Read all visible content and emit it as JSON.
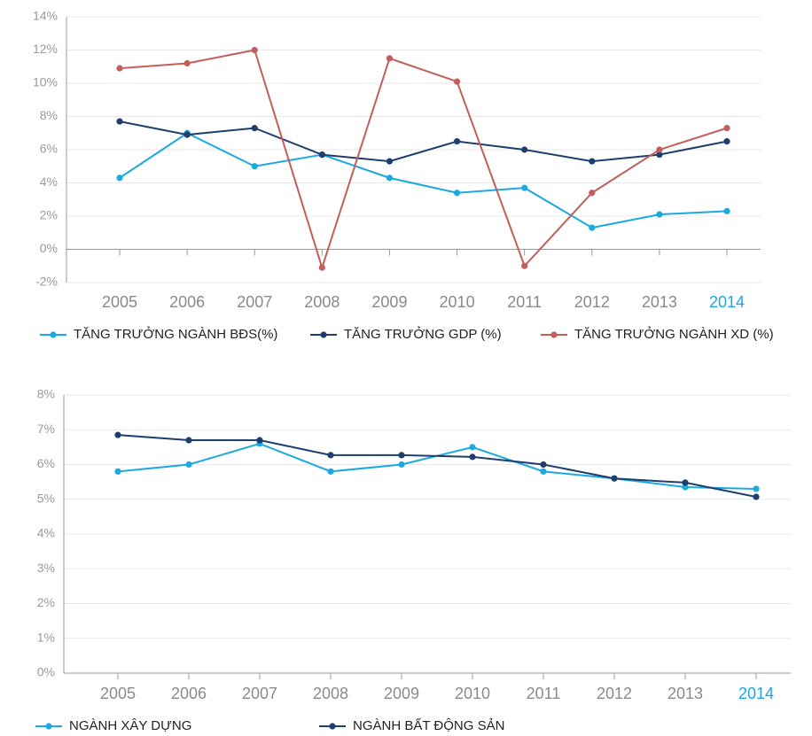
{
  "chart_data": [
    {
      "type": "line",
      "categories": [
        "2005",
        "2006",
        "2007",
        "2008",
        "2009",
        "2010",
        "2011",
        "2012",
        "2013",
        "2014"
      ],
      "ylim": [
        -2,
        14
      ],
      "yticks": [
        {
          "value": -2,
          "label": "-2%"
        },
        {
          "value": 0,
          "label": "0%"
        },
        {
          "value": 2,
          "label": "2%"
        },
        {
          "value": 4,
          "label": "4%"
        },
        {
          "value": 6,
          "label": "6%"
        },
        {
          "value": 8,
          "label": "8%"
        },
        {
          "value": 10,
          "label": "10%"
        },
        {
          "value": 12,
          "label": "12%"
        },
        {
          "value": 14,
          "label": "14%"
        }
      ],
      "grid": true,
      "legend": "bottom-left",
      "series": [
        {
          "name": "TĂNG TRƯỞNG NGÀNH BĐS(%)",
          "color": "#1aa9e0",
          "values": [
            4.3,
            7.0,
            5.0,
            5.7,
            4.3,
            3.4,
            3.7,
            1.3,
            2.1,
            2.3
          ]
        },
        {
          "name": "TĂNG TRƯỞNG GDP (%)",
          "color": "#1d3e6e",
          "values": [
            7.7,
            6.9,
            7.3,
            5.7,
            5.3,
            6.5,
            6.0,
            5.3,
            5.7,
            6.5
          ]
        },
        {
          "name": "TĂNG TRƯỞNG NGÀNH XD (%)",
          "color": "#c45e5b",
          "values": [
            10.9,
            11.2,
            12.0,
            -1.1,
            11.5,
            10.1,
            -1.0,
            3.4,
            6.0,
            7.3
          ]
        }
      ]
    },
    {
      "type": "line",
      "categories": [
        "2005",
        "2006",
        "2007",
        "2008",
        "2009",
        "2010",
        "2011",
        "2012",
        "2013",
        "2014"
      ],
      "ylim": [
        0,
        8
      ],
      "yticks": [
        {
          "value": 0,
          "label": "0%"
        },
        {
          "value": 1,
          "label": "1%"
        },
        {
          "value": 2,
          "label": "2%"
        },
        {
          "value": 3,
          "label": "3%"
        },
        {
          "value": 4,
          "label": "4%"
        },
        {
          "value": 5,
          "label": "5%"
        },
        {
          "value": 6,
          "label": "6%"
        },
        {
          "value": 7,
          "label": "7%"
        },
        {
          "value": 8,
          "label": "8%"
        }
      ],
      "grid": true,
      "legend": "bottom-left",
      "series": [
        {
          "name": "NGÀNH XÂY DỰNG",
          "color": "#1aa9e0",
          "values": [
            5.8,
            6.0,
            6.6,
            5.8,
            6.0,
            6.5,
            5.8,
            5.6,
            5.35,
            5.3
          ]
        },
        {
          "name": "NGÀNH BẤT ĐỘNG SẢN",
          "color": "#1d3e6e",
          "values": [
            6.85,
            6.7,
            6.7,
            6.27,
            6.27,
            6.22,
            6.0,
            5.6,
            5.48,
            5.07
          ]
        }
      ]
    }
  ]
}
